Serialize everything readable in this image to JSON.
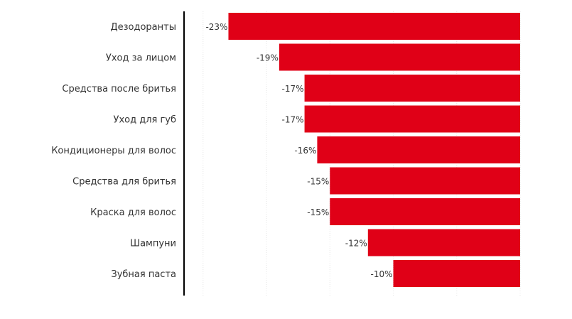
{
  "chart_data": {
    "type": "bar",
    "orientation": "horizontal",
    "categories": [
      "Дезодоранты",
      "Уход за лицом",
      "Средства после бритья",
      "Уход для губ",
      "Кондиционеры для волос",
      "Средства для бритья",
      "Краска для волос",
      "Шампуни",
      "Зубная паста"
    ],
    "values": [
      -23,
      -19,
      -17,
      -17,
      -16,
      -15,
      -15,
      -12,
      -10
    ],
    "value_labels": [
      "-23%",
      "-19%",
      "-17%",
      "-17%",
      "-16%",
      "-15%",
      "-15%",
      "-12%",
      "-10%"
    ],
    "value_unit": "%",
    "xlim": [
      -26.5,
      0
    ],
    "grid": true,
    "legend": "none",
    "title": "",
    "xlabel": "",
    "ylabel": ""
  },
  "colors": {
    "bar": "#e00017",
    "axis": "#000000",
    "grid": "#e6e6e6",
    "category_text": "#333333",
    "value_text": "#333333"
  }
}
